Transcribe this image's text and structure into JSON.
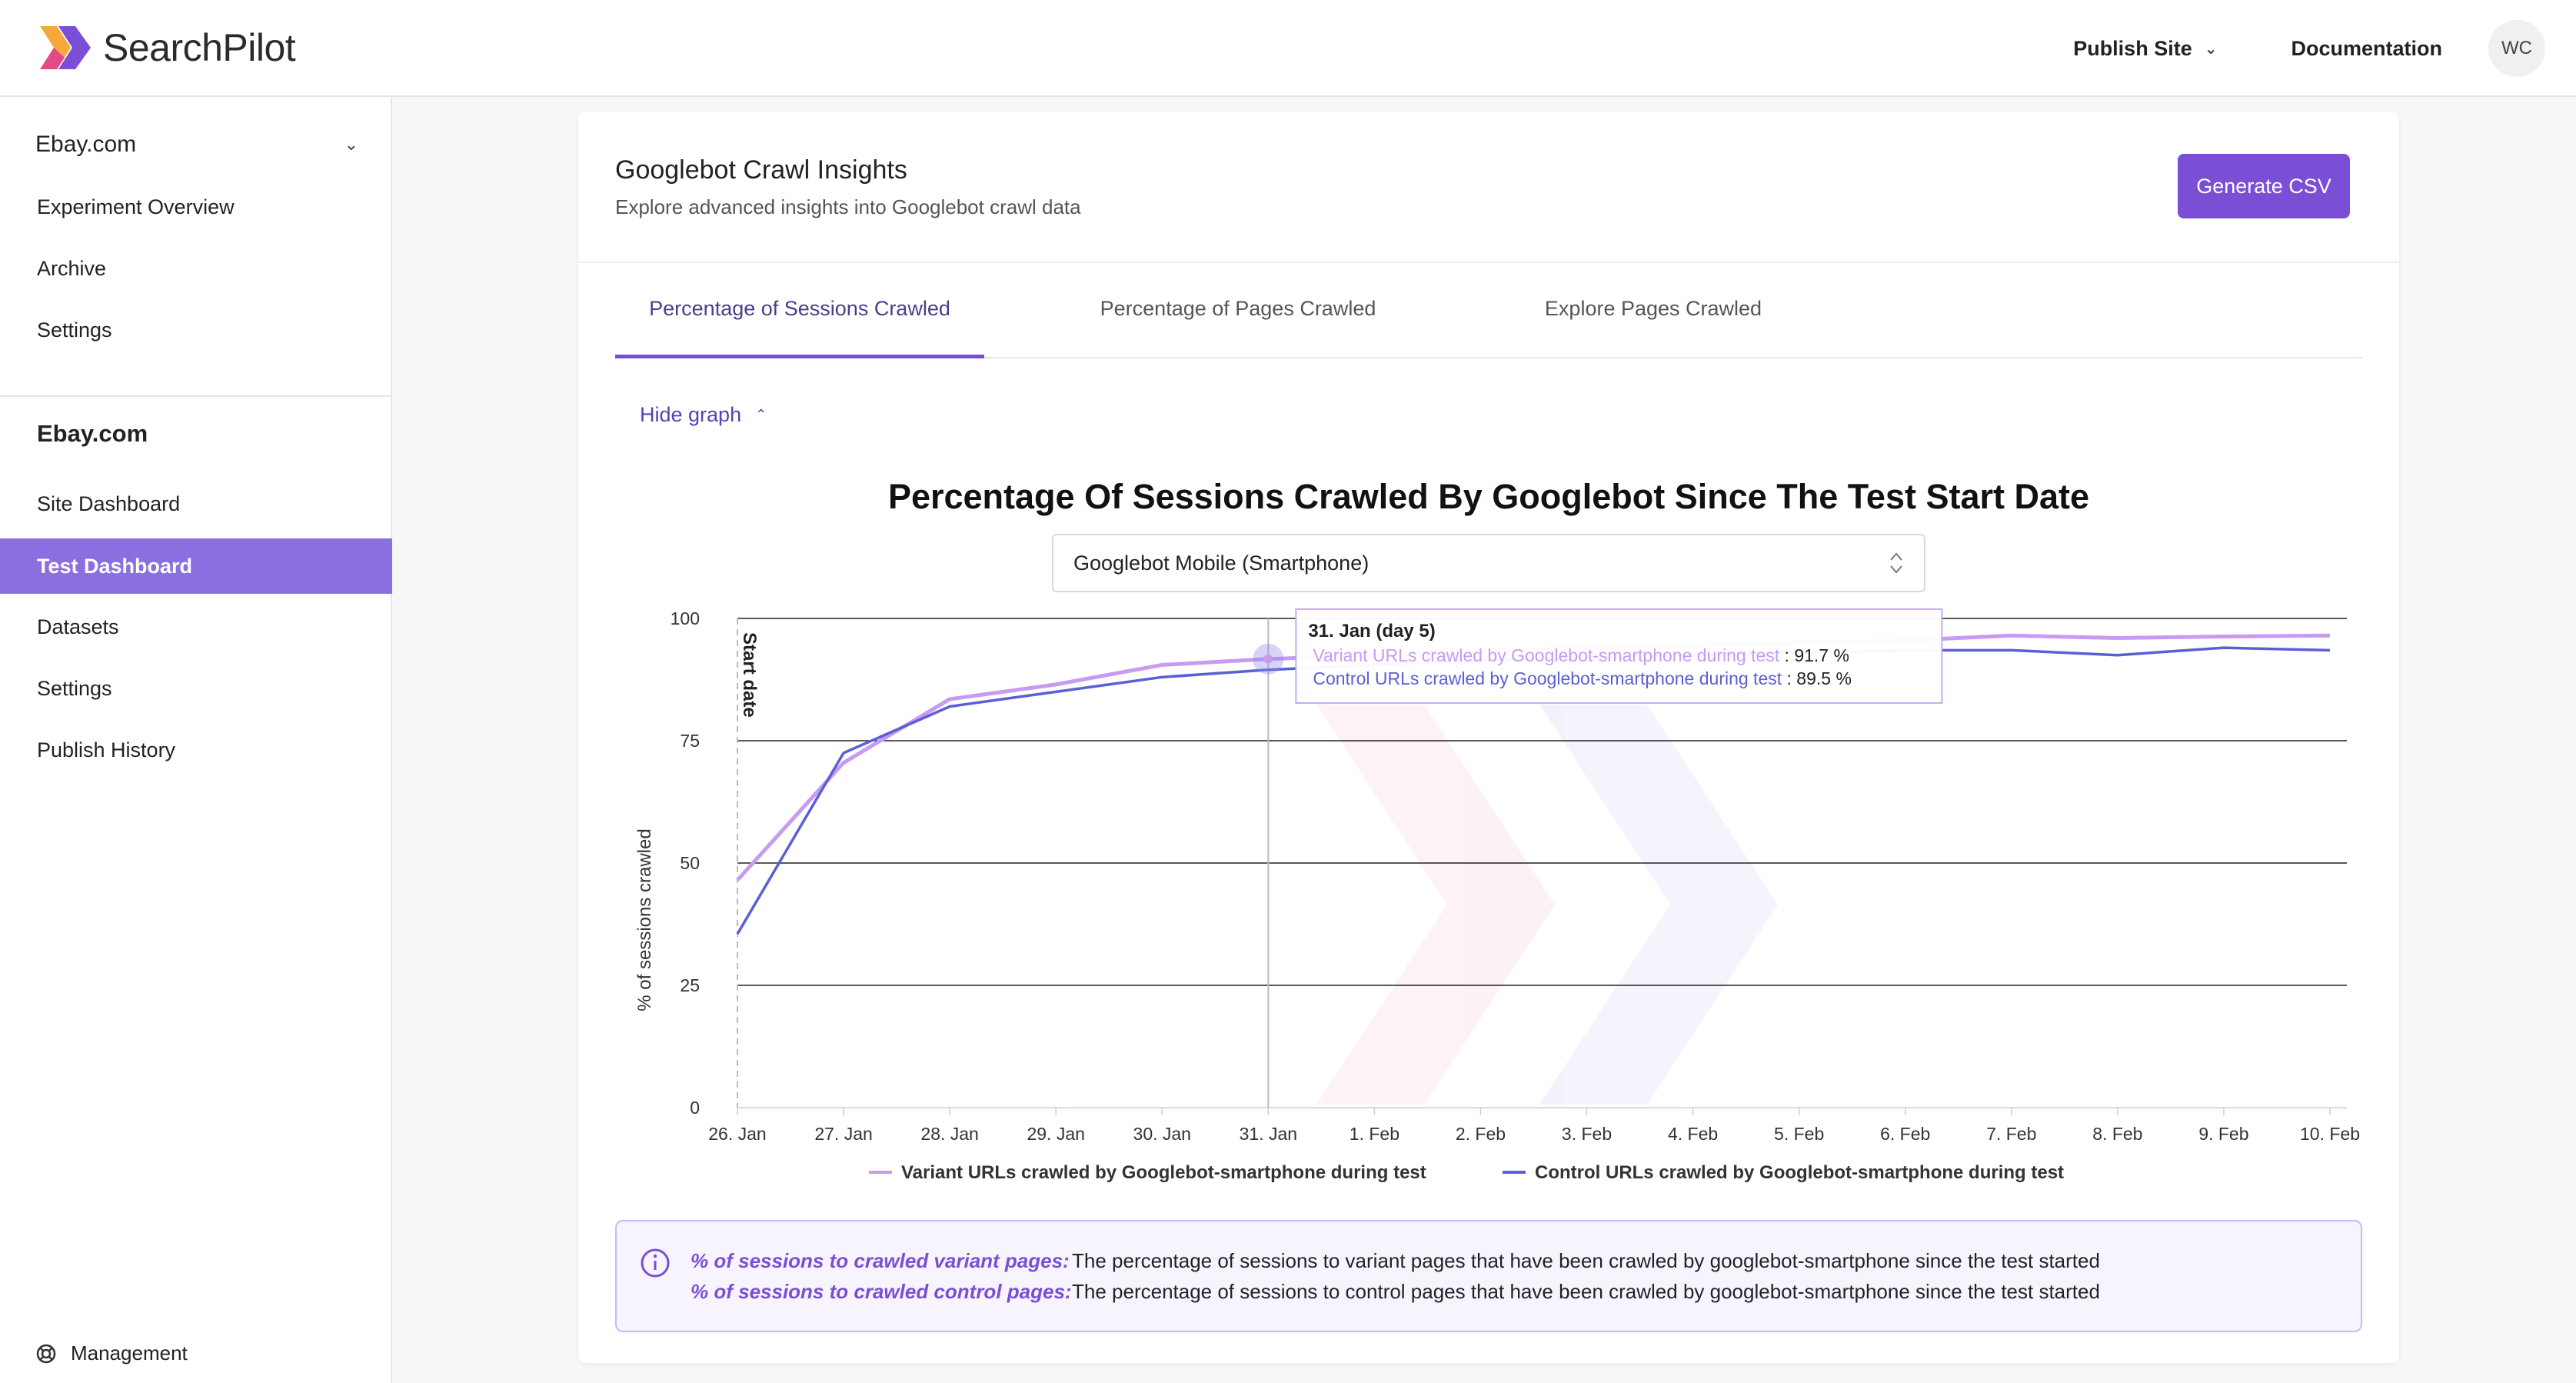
{
  "app": {
    "brand": "SearchPilot",
    "brand_colors": [
      "#f6b52e",
      "#e0458e",
      "#7a4fd6"
    ]
  },
  "header": {
    "publish_site": "Publish Site",
    "documentation": "Documentation",
    "avatar_initials": "WC"
  },
  "sidebar": {
    "site_select": "Ebay.com",
    "top_items": [
      {
        "label": "Experiment Overview"
      },
      {
        "label": "Archive"
      },
      {
        "label": "Settings"
      }
    ],
    "section_heading": "Ebay.com",
    "items": [
      {
        "label": "Site Dashboard"
      },
      {
        "label": "Test Dashboard",
        "active": true
      },
      {
        "label": "Datasets"
      },
      {
        "label": "Settings"
      },
      {
        "label": "Publish History"
      }
    ],
    "management": "Management"
  },
  "card": {
    "title": "Googlebot Crawl Insights",
    "subtitle": "Explore advanced insights into Googlebot crawl data",
    "generate_csv": "Generate CSV",
    "tabs": [
      {
        "label": "Percentage of Sessions Crawled",
        "active": true
      },
      {
        "label": "Percentage of Pages Crawled"
      },
      {
        "label": "Explore Pages Crawled"
      }
    ],
    "hide_graph": "Hide graph",
    "bot_select": "Googlebot Mobile (Smartphone)"
  },
  "info": {
    "variant_label": "% of sessions to crawled variant pages:",
    "variant_text": "The percentage of sessions to variant pages that have been crawled by googlebot-smartphone since the test started",
    "control_label": "% of sessions to crawled control pages:",
    "control_text": "The percentage of sessions to control pages that have been crawled by googlebot-smartphone since the test started"
  },
  "chart_data": {
    "type": "line",
    "title": "Percentage Of Sessions Crawled By Googlebot Since The Test Start Date",
    "ylabel": "% of sessions crawled",
    "xlabel": "",
    "ylim": [
      0,
      100
    ],
    "yticks": [
      0,
      25,
      50,
      75,
      100
    ],
    "categories": [
      "26. Jan",
      "27. Jan",
      "28. Jan",
      "29. Jan",
      "30. Jan",
      "31. Jan",
      "1. Feb",
      "2. Feb",
      "3. Feb",
      "4. Feb",
      "5. Feb",
      "6. Feb",
      "7. Feb",
      "8. Feb",
      "9. Feb",
      "10. Feb"
    ],
    "series": [
      {
        "name": "Variant URLs crawled by Googlebot-smartphone during test",
        "color": "#c79bf0",
        "values": [
          46.5,
          70.5,
          83.5,
          86.5,
          90.5,
          91.7,
          92.5,
          93.5,
          94.0,
          94.5,
          95.0,
          95.5,
          96.5,
          96.0,
          96.3,
          96.5
        ]
      },
      {
        "name": "Control URLs crawled by Googlebot-smartphone during test",
        "color": "#5b5fd6",
        "values": [
          35.5,
          72.5,
          82.0,
          85.0,
          88.0,
          89.5,
          90.5,
          91.5,
          92.0,
          92.5,
          93.0,
          93.5,
          93.5,
          92.5,
          94.0,
          93.5
        ]
      }
    ],
    "start_marker": {
      "label": "Start date",
      "x": "26. Jan"
    },
    "tooltip": {
      "header": "31. Jan (day 5)",
      "variant_label": "Variant URLs crawled by Googlebot-smartphone during test",
      "variant_value": "91.7 %",
      "control_label": "Control URLs crawled by Googlebot-smartphone during test",
      "control_value": "89.5 %",
      "x": "31. Jan"
    },
    "grid": true,
    "legend_position": "bottom-center"
  }
}
